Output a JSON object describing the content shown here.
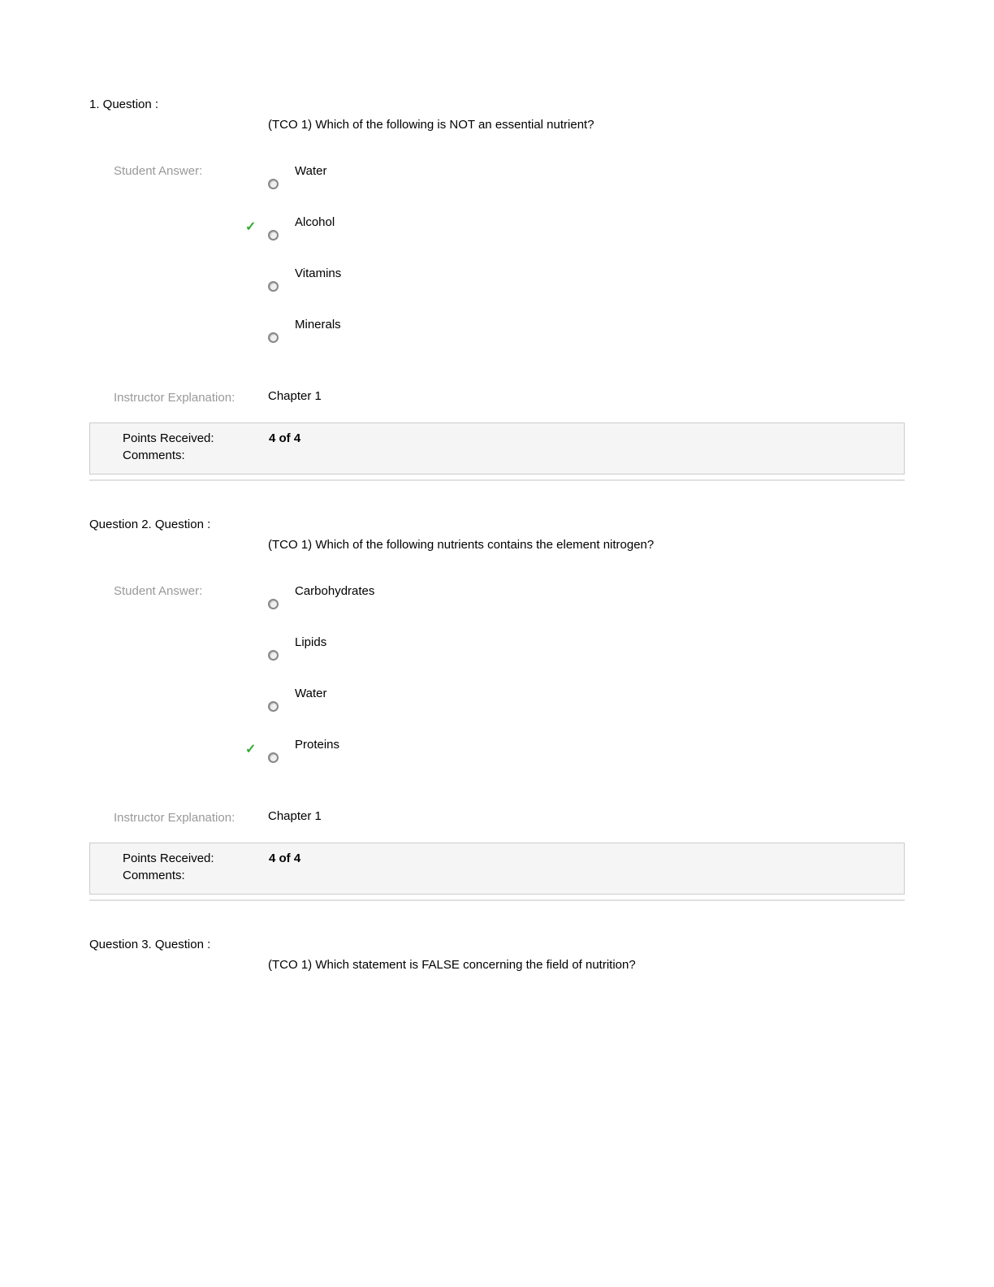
{
  "questions": [
    {
      "number_label": "1.    Question :",
      "text": "(TCO 1) Which of the following is NOT an essential nutrient?",
      "student_answer_label": "Student Answer:",
      "options": [
        {
          "text": "Water",
          "correct": false
        },
        {
          "text": "Alcohol",
          "correct": true
        },
        {
          "text": "Vitamins",
          "correct": false
        },
        {
          "text": "Minerals",
          "correct": false
        }
      ],
      "instructor_label": "Instructor Explanation:",
      "instructor_text": "Chapter 1",
      "points_label": "Points Received:",
      "points_value": "4 of 4",
      "comments_label": "Comments:",
      "comments_value": ""
    },
    {
      "number_label": "Question 2.  Question :",
      "text": "(TCO 1) Which of the following nutrients contains the element nitrogen?",
      "student_answer_label": "Student Answer:",
      "options": [
        {
          "text": "Carbohydrates",
          "correct": false
        },
        {
          "text": "Lipids",
          "correct": false
        },
        {
          "text": "Water",
          "correct": false
        },
        {
          "text": "Proteins",
          "correct": true
        }
      ],
      "instructor_label": "Instructor Explanation:",
      "instructor_text": "Chapter 1",
      "points_label": "Points Received:",
      "points_value": "4 of 4",
      "comments_label": "Comments:",
      "comments_value": ""
    },
    {
      "number_label": "Question 3.  Question :",
      "text": "(TCO 1) Which statement is FALSE concerning the field of nutrition?",
      "student_answer_label": "",
      "options": [],
      "instructor_label": "",
      "instructor_text": "",
      "points_label": "",
      "points_value": "",
      "comments_label": "",
      "comments_value": ""
    }
  ],
  "colors": {
    "text": "#000000",
    "label_gray": "#999999",
    "check_green": "#33aa33",
    "box_bg": "#f5f5f5",
    "box_border": "#cccccc",
    "divider": "#e0e0e0",
    "radio_border": "#888888"
  }
}
